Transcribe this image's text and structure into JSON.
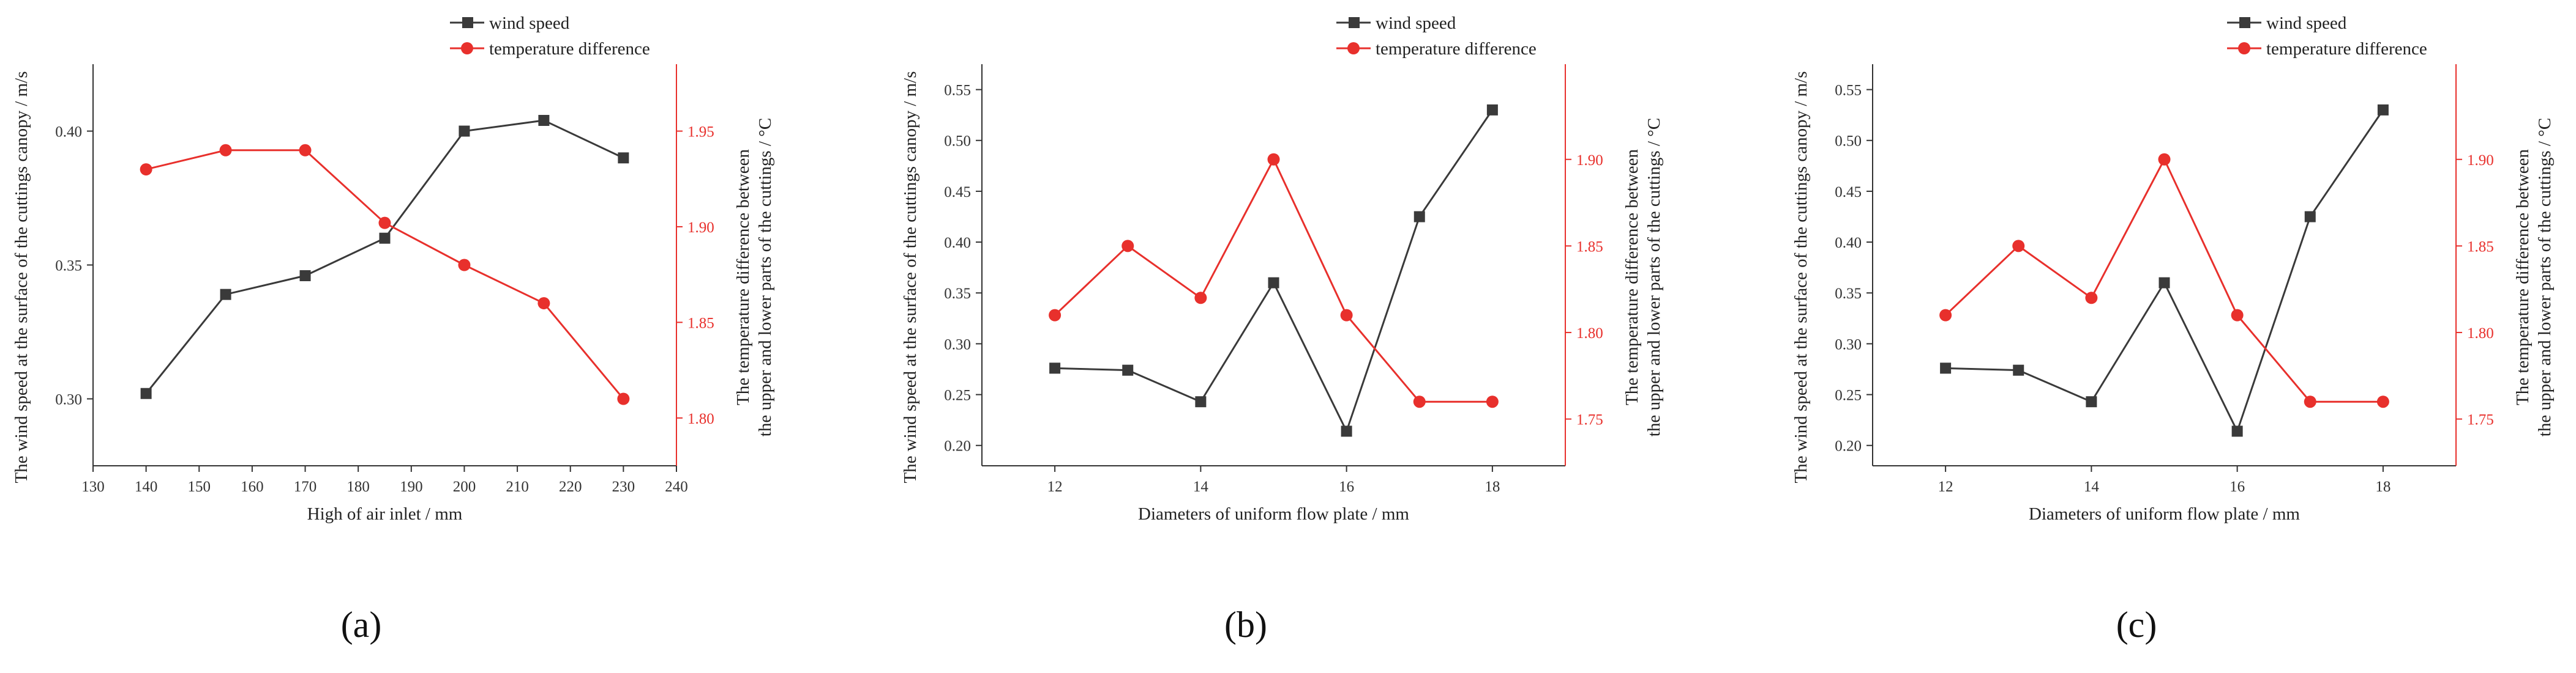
{
  "colors": {
    "wind": "#3a3a3a",
    "temp": "#e8302c",
    "axis": "#333333"
  },
  "chart_data": [
    {
      "type": "line",
      "panel_label": "(a)",
      "legend": [
        "wind speed",
        "temperature difference"
      ],
      "xlabel": "High of air inlet  / mm",
      "ylabel_left": "The wind speed at the surface of the cuttings canopy / m/s",
      "ylabel_right": [
        "The temperature difference between",
        "the upper and lower parts of the cuttings  / °C"
      ],
      "xlim": [
        130,
        240
      ],
      "xticks": [
        130,
        140,
        150,
        160,
        170,
        180,
        190,
        200,
        210,
        220,
        230,
        240
      ],
      "ylim_left": [
        0.275,
        0.425
      ],
      "yticks_left": [
        "0.30",
        "0.35",
        "0.40"
      ],
      "ylim_right": [
        1.775,
        1.985
      ],
      "yticks_right": [
        "1.80",
        "1.85",
        "1.90",
        "1.95"
      ],
      "x": [
        140,
        155,
        170,
        185,
        200,
        215,
        230
      ],
      "series": [
        {
          "name": "wind speed",
          "axis": "left",
          "marker": "square",
          "values": [
            0.302,
            0.339,
            0.346,
            0.36,
            0.4,
            0.404,
            0.39
          ]
        },
        {
          "name": "temperature difference",
          "axis": "right",
          "marker": "circle",
          "values": [
            1.93,
            1.94,
            1.94,
            1.902,
            1.88,
            1.86,
            1.81
          ]
        }
      ]
    },
    {
      "type": "line",
      "panel_label": "(b)",
      "legend": [
        "wind speed",
        "temperature difference"
      ],
      "xlabel": "Diameters of uniform flow plate  / mm",
      "ylabel_left": "The wind speed at the surface of the cuttings canopy / m/s",
      "ylabel_right": [
        "The temperature difference between",
        "the upper and lower parts of the cuttings  / °C"
      ],
      "xlim": [
        11,
        19
      ],
      "xticks": [
        12,
        14,
        16,
        18
      ],
      "ylim_left": [
        0.18,
        0.575
      ],
      "yticks_left": [
        "0.20",
        "0.25",
        "0.30",
        "0.35",
        "0.40",
        "0.45",
        "0.50",
        "0.55"
      ],
      "ylim_right": [
        1.723,
        1.955
      ],
      "yticks_right": [
        "1.75",
        "1.80",
        "1.85",
        "1.90"
      ],
      "x": [
        12,
        13,
        14,
        15,
        16,
        17,
        18
      ],
      "series": [
        {
          "name": "wind speed",
          "axis": "left",
          "marker": "square",
          "values": [
            0.276,
            0.274,
            0.243,
            0.36,
            0.214,
            0.425,
            0.53
          ]
        },
        {
          "name": "temperature difference",
          "axis": "right",
          "marker": "circle",
          "values": [
            1.81,
            1.85,
            1.82,
            1.9,
            1.81,
            1.76,
            1.76
          ]
        }
      ]
    },
    {
      "type": "line",
      "panel_label": "(c)",
      "legend": [
        "wind speed",
        "temperature difference"
      ],
      "xlabel": "Diameters of uniform flow plate  / mm",
      "ylabel_left": "The wind speed at the surface of the cuttings canopy / m/s",
      "ylabel_right": [
        "The temperature difference between",
        "the upper and lower parts of the cuttings  / °C"
      ],
      "xlim": [
        11,
        19
      ],
      "xticks": [
        12,
        14,
        16,
        18
      ],
      "ylim_left": [
        0.18,
        0.575
      ],
      "yticks_left": [
        "0.20",
        "0.25",
        "0.30",
        "0.35",
        "0.40",
        "0.45",
        "0.50",
        "0.55"
      ],
      "ylim_right": [
        1.723,
        1.955
      ],
      "yticks_right": [
        "1.75",
        "1.80",
        "1.85",
        "1.90"
      ],
      "x": [
        12,
        13,
        14,
        15,
        16,
        17,
        18
      ],
      "series": [
        {
          "name": "wind speed",
          "axis": "left",
          "marker": "square",
          "values": [
            0.276,
            0.274,
            0.243,
            0.36,
            0.214,
            0.425,
            0.53
          ]
        },
        {
          "name": "temperature difference",
          "axis": "right",
          "marker": "circle",
          "values": [
            1.81,
            1.85,
            1.82,
            1.9,
            1.81,
            1.76,
            1.76
          ]
        }
      ]
    }
  ]
}
